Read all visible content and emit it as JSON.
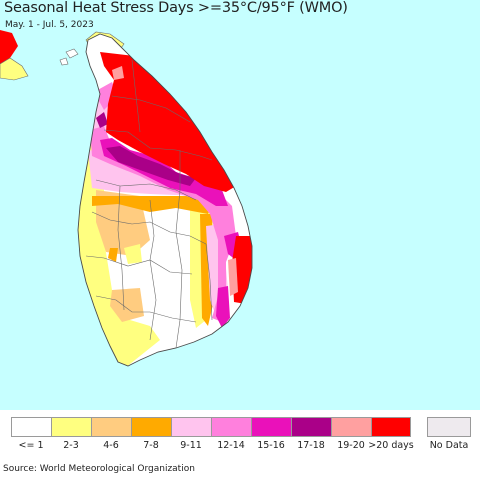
{
  "header": {
    "title": "Seasonal Heat Stress Days >=35°C/95°F (WMO)",
    "subtitle": "May. 1 - Jul. 5, 2023"
  },
  "map": {
    "background_color": "#c6ffff",
    "land_color": "#ffffff",
    "boundary_color": "#6b6b6b"
  },
  "legend": {
    "classes": [
      {
        "label": "<= 1",
        "color": "#ffffff"
      },
      {
        "label": "2-3",
        "color": "#ffff80"
      },
      {
        "label": "4-6",
        "color": "#ffcc80"
      },
      {
        "label": "7-8",
        "color": "#ffaa00"
      },
      {
        "label": "9-11",
        "color": "#ffc4ee"
      },
      {
        "label": "12-14",
        "color": "#ff80dd"
      },
      {
        "label": "15-16",
        "color": "#ea11ba"
      },
      {
        "label": "17-18",
        "color": "#aa0088"
      },
      {
        "label": "19-20",
        "color": "#ffa0a0"
      },
      {
        "label": ">20 days",
        "color": "#ff0000"
      }
    ],
    "no_data": {
      "label": "No Data",
      "color": "#eeeaee"
    }
  },
  "footer": {
    "source": "Source: World Meteorological Organization"
  }
}
